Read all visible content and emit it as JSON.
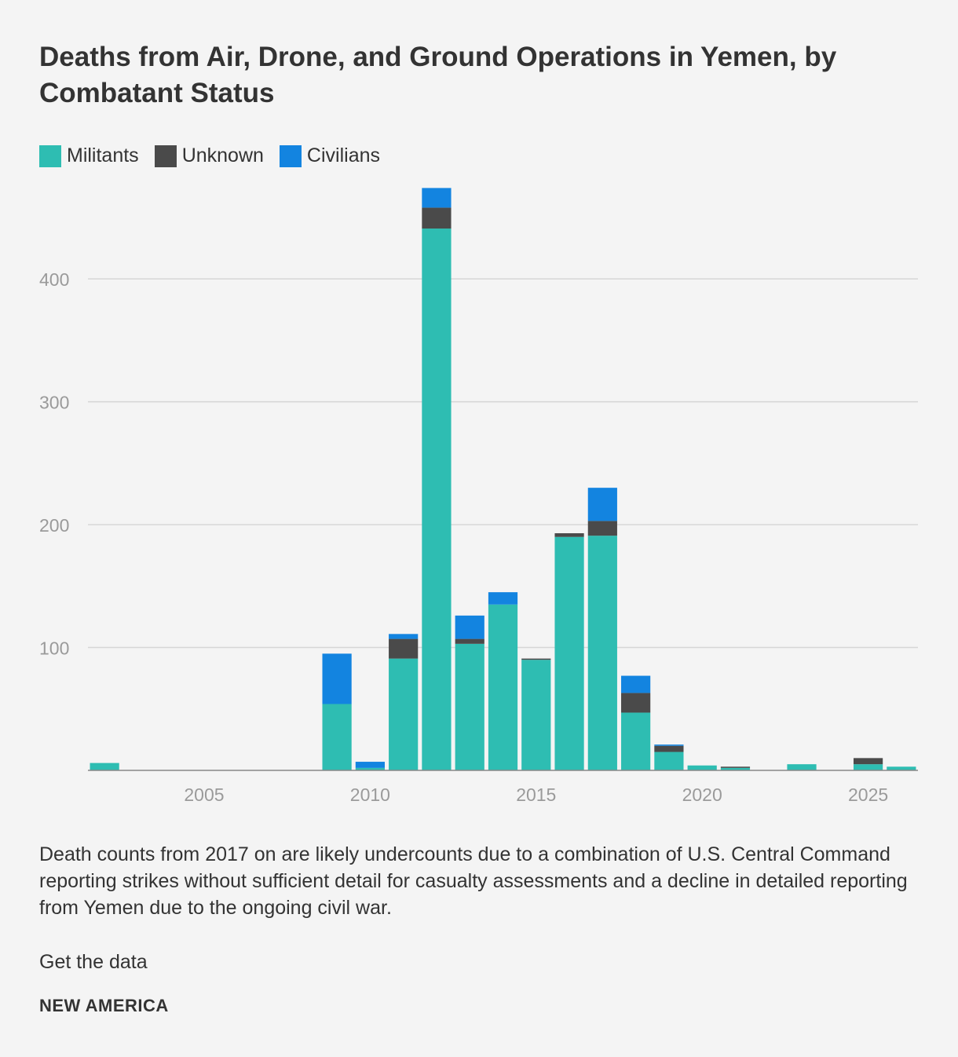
{
  "title": "Deaths from Air, Drone, and Ground Operations in Yemen, by Combatant Status",
  "legend": [
    {
      "label": "Militants",
      "color": "#2ebdb2"
    },
    {
      "label": "Unknown",
      "color": "#4a4a4a"
    },
    {
      "label": "Civilians",
      "color": "#1384e0"
    }
  ],
  "note": "Death counts from 2017 on are likely undercounts due to a combination of U.S. Central Command reporting strikes without sufficient detail for casualty assessments and a decline in detailed reporting from Yemen due to the ongoing civil war.",
  "get_data_label": "Get the data",
  "brand": "NEW AMERICA",
  "chart_data": {
    "type": "bar",
    "stacked": true,
    "title": "Deaths from Air, Drone, and Ground Operations in Yemen, by Combatant Status",
    "xlabel": "",
    "ylabel": "",
    "x": [
      2002,
      2009,
      2010,
      2011,
      2012,
      2013,
      2014,
      2015,
      2016,
      2017,
      2018,
      2019,
      2020,
      2021,
      2023,
      2025,
      2026
    ],
    "series": [
      {
        "name": "Militants",
        "color": "#2ebdb2",
        "values": [
          6,
          54,
          2,
          91,
          441,
          103,
          135,
          90,
          190,
          191,
          47,
          15,
          4,
          2,
          5,
          5,
          3
        ]
      },
      {
        "name": "Unknown",
        "color": "#4a4a4a",
        "values": [
          0,
          0,
          0,
          16,
          17,
          4,
          0,
          1,
          3,
          12,
          16,
          5,
          0,
          1,
          0,
          5,
          0
        ]
      },
      {
        "name": "Civilians",
        "color": "#1384e0",
        "values": [
          0,
          41,
          5,
          4,
          16,
          19,
          10,
          0,
          0,
          27,
          14,
          1,
          0,
          0,
          0,
          0,
          0
        ]
      }
    ],
    "xlim": [
      2001.5,
      2026.5
    ],
    "ylim": [
      0,
      480
    ],
    "xticks": [
      2005,
      2010,
      2015,
      2020,
      2025
    ],
    "yticks": [
      100,
      200,
      300,
      400
    ],
    "grid": true,
    "legend_position": "top-left"
  }
}
